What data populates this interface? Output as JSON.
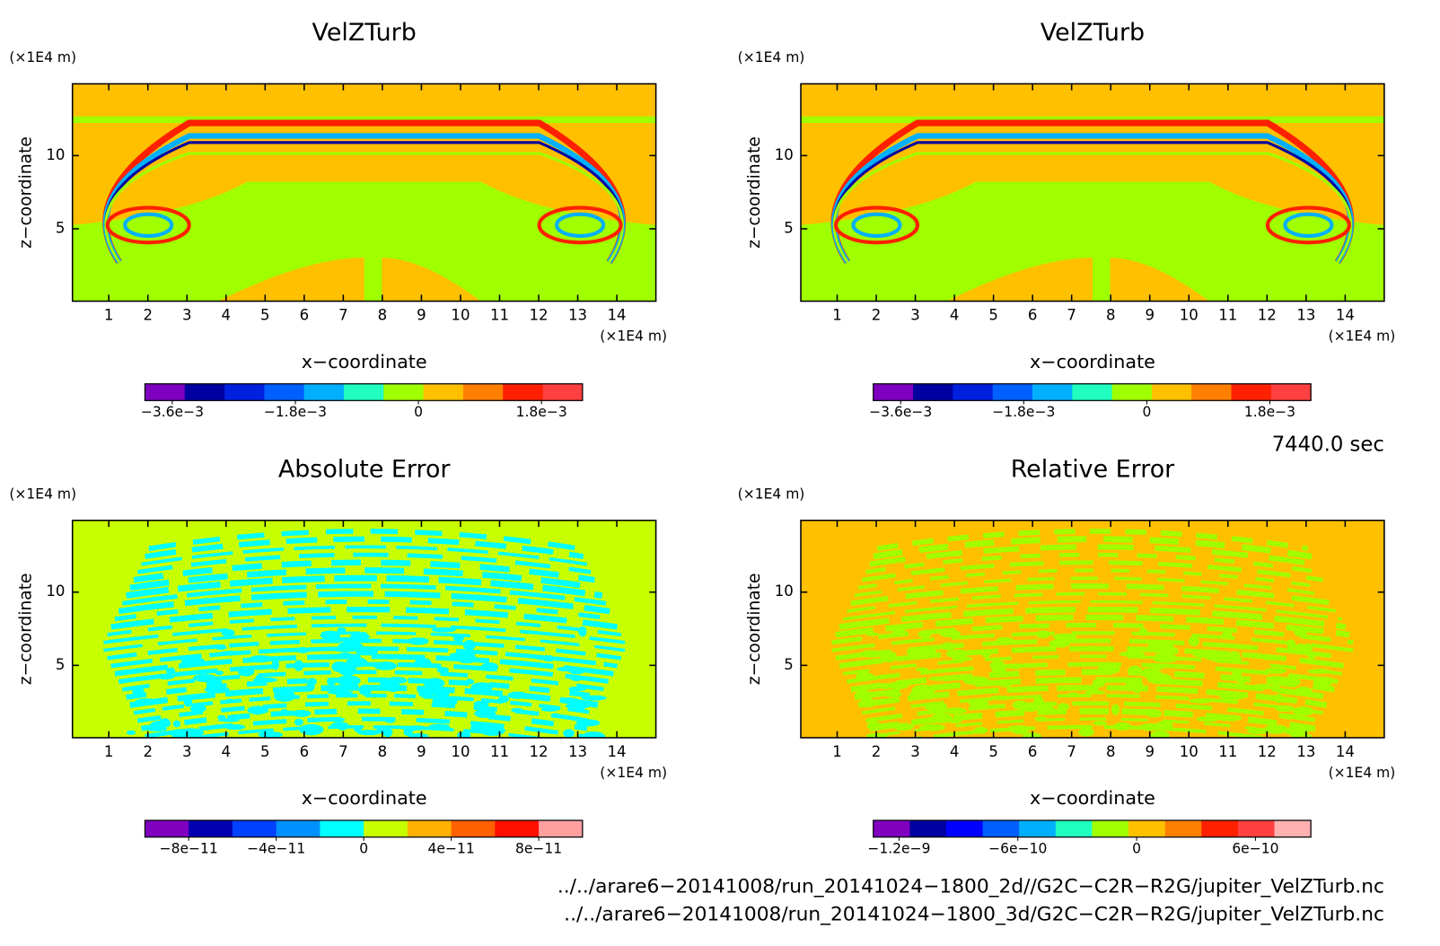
{
  "chart_data": [
    {
      "type": "contour",
      "title": "VelZTurb",
      "xlabel": "x−coordinate",
      "ylabel": "z−coordinate",
      "x_unit": "(×1E4 m)",
      "y_unit": "(×1E4 m)",
      "xlim": [
        0.07,
        15
      ],
      "ylim": [
        0.06,
        14.9
      ],
      "xticks": [
        1,
        2,
        3,
        4,
        5,
        6,
        7,
        8,
        9,
        10,
        11,
        12,
        13,
        14
      ],
      "yticks": [
        5,
        10
      ],
      "colorbar": {
        "clim": [
          -0.004,
          0.0024
        ],
        "colors": [
          "#7f00bf",
          "#0000a0",
          "#0020e0",
          "#0060ff",
          "#00b0ff",
          "#20ffc0",
          "#a0ff00",
          "#ffc000",
          "#ff8000",
          "#ff2000",
          "#ff4040"
        ],
        "ticks": [
          {
            "value": -0.0036,
            "label": "−3.6e−3"
          },
          {
            "value": -0.0018,
            "label": "−1.8e−3"
          },
          0,
          {
            "value": 0.0018,
            "label": "1.8e−3"
          }
        ]
      }
    },
    {
      "type": "contour",
      "title": "VelZTurb",
      "xlabel": "x−coordinate",
      "ylabel": "z−coordinate",
      "x_unit": "(×1E4 m)",
      "y_unit": "(×1E4 m)",
      "xlim": [
        0.07,
        15
      ],
      "ylim": [
        0.06,
        14.9
      ],
      "xticks": [
        1,
        2,
        3,
        4,
        5,
        6,
        7,
        8,
        9,
        10,
        11,
        12,
        13,
        14
      ],
      "yticks": [
        5,
        10
      ],
      "colorbar": {
        "clim": [
          -0.004,
          0.0024
        ],
        "colors": [
          "#7f00bf",
          "#0000a0",
          "#0020e0",
          "#0060ff",
          "#00b0ff",
          "#20ffc0",
          "#a0ff00",
          "#ffc000",
          "#ff8000",
          "#ff2000",
          "#ff4040"
        ],
        "ticks": [
          {
            "value": -0.0036,
            "label": "−3.6e−3"
          },
          {
            "value": -0.0018,
            "label": "−1.8e−3"
          },
          0,
          {
            "value": 0.0018,
            "label": "1.8e−3"
          }
        ]
      }
    },
    {
      "type": "contour",
      "title": "Absolute Error",
      "xlabel": "x−coordinate",
      "ylabel": "z−coordinate",
      "x_unit": "(×1E4 m)",
      "y_unit": "(×1E4 m)",
      "xlim": [
        0.07,
        15
      ],
      "ylim": [
        0.06,
        14.9
      ],
      "xticks": [
        1,
        2,
        3,
        4,
        5,
        6,
        7,
        8,
        9,
        10,
        11,
        12,
        13,
        14
      ],
      "yticks": [
        5,
        10
      ],
      "colorbar": {
        "clim": [
          -1e-10,
          1e-10
        ],
        "colors": [
          "#8000c0",
          "#0000b0",
          "#0040ff",
          "#0090ff",
          "#00ffff",
          "#c8ff00",
          "#ffb000",
          "#ff6000",
          "#ff1000",
          "#ffa0a0"
        ],
        "ticks": [
          {
            "value": -8e-11,
            "label": "−8e−11"
          },
          {
            "value": -4e-11,
            "label": "−4e−11"
          },
          0,
          {
            "value": 4e-11,
            "label": "4e−11"
          },
          {
            "value": 8e-11,
            "label": "8e−11"
          }
        ]
      }
    },
    {
      "type": "contour",
      "title": "Relative Error",
      "xlabel": "x−coordinate",
      "ylabel": "z−coordinate",
      "x_unit": "(×1E4 m)",
      "y_unit": "(×1E4 m)",
      "xlim": [
        0.07,
        15
      ],
      "ylim": [
        0.06,
        14.9
      ],
      "xticks": [
        1,
        2,
        3,
        4,
        5,
        6,
        7,
        8,
        9,
        10,
        11,
        12,
        13,
        14
      ],
      "yticks": [
        5,
        10
      ],
      "colorbar": {
        "clim": [
          -1.33e-09,
          8.8e-10
        ],
        "colors": [
          "#8000c0",
          "#0000a0",
          "#0000ff",
          "#0060ff",
          "#00b0ff",
          "#20ffc0",
          "#a0ff00",
          "#ffc000",
          "#ff8000",
          "#ff2000",
          "#ff4040",
          "#ffb0b0"
        ],
        "ticks": [
          {
            "value": -1.2e-09,
            "label": "−1.2e−9"
          },
          {
            "value": -6e-10,
            "label": "−6e−10"
          },
          0,
          {
            "value": 6e-10,
            "label": "6e−10"
          }
        ]
      }
    }
  ],
  "time": "7440.0 sec",
  "files": [
    "../../arare6−20141008/run_20141024−1800_2d//G2C−C2R−R2G/jupiter_VelZTurb.nc",
    "../../arare6−20141008/run_20141024−1800_3d/G2C−C2R−R2G/jupiter_VelZTurb.nc"
  ]
}
